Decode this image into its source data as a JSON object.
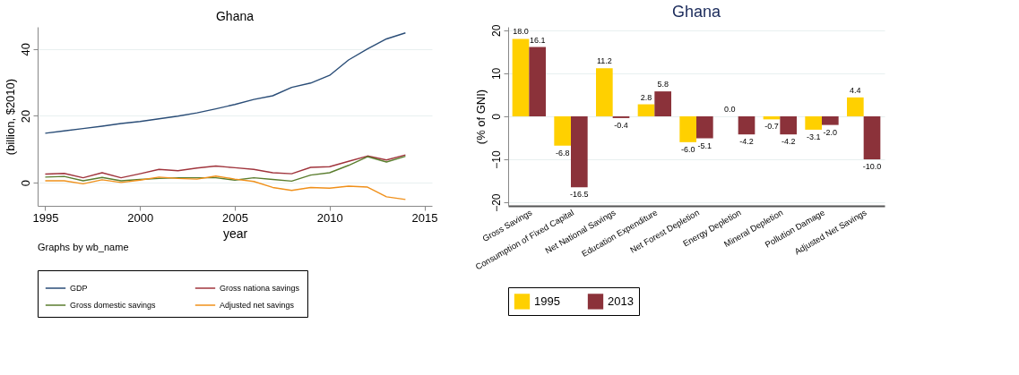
{
  "chart_data": [
    {
      "type": "line",
      "title": "Ghana",
      "xlabel": "year",
      "ylabel": "(billion, $2010)",
      "x": [
        1995,
        1996,
        1997,
        1998,
        1999,
        2000,
        2001,
        2002,
        2003,
        2004,
        2005,
        2006,
        2007,
        2008,
        2009,
        2010,
        2011,
        2012,
        2013,
        2014
      ],
      "series": [
        {
          "name": "GDP",
          "color": "#2a4d77",
          "values": [
            14.8,
            15.5,
            16.2,
            16.9,
            17.7,
            18.3,
            19.1,
            19.9,
            20.9,
            22.1,
            23.4,
            24.9,
            26.0,
            28.5,
            29.8,
            32.1,
            36.7,
            40.0,
            43.0,
            44.8
          ]
        },
        {
          "name": "Gross nationa savings",
          "color": "#a0343c",
          "values": [
            2.6,
            2.8,
            1.5,
            3.0,
            1.5,
            2.7,
            4.0,
            3.6,
            4.4,
            5.0,
            4.5,
            4.0,
            3.0,
            2.7,
            4.6,
            4.8,
            6.4,
            8.0,
            6.8,
            8.3
          ]
        },
        {
          "name": "Gross domestic savings",
          "color": "#5a7d2e",
          "values": [
            1.7,
            1.9,
            0.6,
            1.6,
            0.6,
            1.0,
            1.3,
            1.5,
            1.5,
            1.5,
            0.8,
            1.5,
            1.0,
            0.5,
            2.3,
            3.0,
            5.2,
            7.8,
            6.2,
            7.9
          ]
        },
        {
          "name": "Adjusted net savings",
          "color": "#f0901a",
          "values": [
            0.6,
            0.6,
            -0.3,
            0.9,
            0.1,
            0.8,
            1.7,
            1.3,
            1.1,
            2.0,
            1.1,
            0.4,
            -1.4,
            -2.3,
            -1.4,
            -1.6,
            -1.0,
            -1.3,
            -4.2,
            -5.0
          ]
        }
      ],
      "xlim": [
        1994.6,
        2015.4
      ],
      "xticks": [
        1995,
        2000,
        2005,
        2010,
        2015
      ],
      "ylim": [
        -6.9,
        46.6
      ],
      "yticks": [
        0,
        20,
        40
      ],
      "grid": "y",
      "legend": "bottom",
      "line_style": "solid",
      "marker": "none",
      "annotations": [
        "Graphs by wb_name"
      ]
    },
    {
      "type": "bar",
      "title": "Ghana",
      "ylabel": "(% of GNI)",
      "categories": [
        "Gross  Savings",
        "Consumption of Fixed Capital",
        "Net National Savings",
        "Education Expenditure",
        "Net Forest Depletion",
        "Energy Depletion",
        "Mineral Depletion",
        "Pollution Damage",
        "Adjusted Net Savings"
      ],
      "series": [
        {
          "name": "1995",
          "color": "#ffd000",
          "values": [
            18.0,
            -6.8,
            11.2,
            2.8,
            -6.0,
            0.0,
            -0.7,
            -3.1,
            4.4
          ]
        },
        {
          "name": "2013",
          "color": "#8b323a",
          "values": [
            16.1,
            -16.5,
            -0.4,
            5.8,
            -5.1,
            -4.2,
            -4.2,
            -2.0,
            -10.0
          ]
        }
      ],
      "ylim": [
        -20.8,
        20.8
      ],
      "yticks": [
        -20,
        -10,
        0,
        10,
        20
      ],
      "grid": "y",
      "legend": "bottom",
      "value_labels": [
        [
          "18.0",
          "-6.8",
          "11.2",
          "2.8",
          "-6.0",
          "0.0",
          "-0.7",
          "-3.1",
          "4.4"
        ],
        [
          "16.1",
          "-16.5",
          "-0.4",
          "5.8",
          "-5.1",
          "-4.2",
          "-4.2",
          "-2.0",
          "-10.0"
        ]
      ]
    }
  ]
}
